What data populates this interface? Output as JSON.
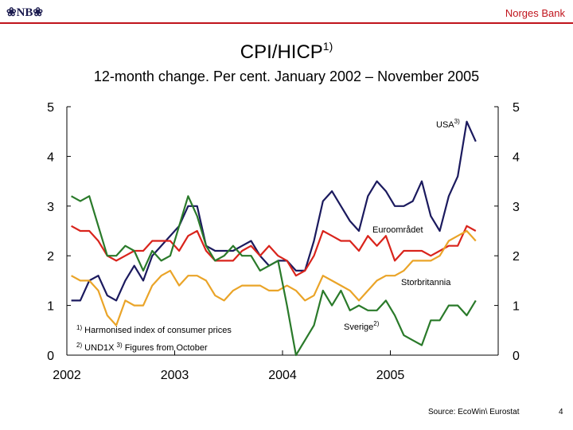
{
  "header": {
    "logo_text": "❀NB❀",
    "bank_name": "Norges Bank"
  },
  "footer": {
    "source": "Source: EcoWin\\ Eurostat",
    "page_number": "4"
  },
  "colors": {
    "header_accent": "#c0141c"
  },
  "chart_data": {
    "type": "line",
    "title": "CPI/HICP",
    "title_superscript": "1)",
    "subtitle": "12-month change. Per cent. January 2002 – November 2005",
    "ylim": [
      0,
      5
    ],
    "y_ticks": [
      "0",
      "1",
      "2",
      "3",
      "4",
      "5"
    ],
    "x_ticks": [
      "2002",
      "2003",
      "2004",
      "2005"
    ],
    "x_tick_values": [
      2002,
      2003,
      2004,
      2005
    ],
    "grid": false,
    "dual_y_axis": true,
    "notes": [
      {
        "sup": "1)",
        "text": "Harmonised index of consumer prices"
      },
      {
        "sup": "2)",
        "text": "UND1X",
        "sup2": "3)",
        "text2": "Figures from October"
      }
    ],
    "series": [
      {
        "name": "USA",
        "name_sup": "3)",
        "color": "#1b1a5e",
        "start": "2002-01",
        "monthly": true,
        "values": [
          1.1,
          1.1,
          1.5,
          1.6,
          1.2,
          1.1,
          1.5,
          1.8,
          1.5,
          2.0,
          2.2,
          2.4,
          2.6,
          3.0,
          3.0,
          2.2,
          2.1,
          2.1,
          2.1,
          2.2,
          2.3,
          2.0,
          1.8,
          1.9,
          1.9,
          1.7,
          1.7,
          2.3,
          3.1,
          3.3,
          3.0,
          2.7,
          2.5,
          3.2,
          3.5,
          3.3,
          3.0,
          3.0,
          3.1,
          3.5,
          2.8,
          2.5,
          3.2,
          3.6,
          4.7,
          4.3
        ]
      },
      {
        "name": "Euroområdet",
        "color": "#d9241c",
        "start": "2002-01",
        "monthly": true,
        "values": [
          2.6,
          2.5,
          2.5,
          2.3,
          2.0,
          1.9,
          2.0,
          2.1,
          2.1,
          2.3,
          2.3,
          2.3,
          2.1,
          2.4,
          2.5,
          2.1,
          1.9,
          1.9,
          1.9,
          2.1,
          2.2,
          2.0,
          2.2,
          2.0,
          1.9,
          1.6,
          1.7,
          2.0,
          2.5,
          2.4,
          2.3,
          2.3,
          2.1,
          2.4,
          2.2,
          2.4,
          1.9,
          2.1,
          2.1,
          2.1,
          2.0,
          2.1,
          2.2,
          2.2,
          2.6,
          2.5
        ]
      },
      {
        "name": "Storbritannia",
        "color": "#eaa428",
        "start": "2002-01",
        "monthly": true,
        "values": [
          1.6,
          1.5,
          1.5,
          1.3,
          0.8,
          0.6,
          1.1,
          1.0,
          1.0,
          1.4,
          1.6,
          1.7,
          1.4,
          1.6,
          1.6,
          1.5,
          1.2,
          1.1,
          1.3,
          1.4,
          1.4,
          1.4,
          1.3,
          1.3,
          1.4,
          1.3,
          1.1,
          1.2,
          1.6,
          1.5,
          1.4,
          1.3,
          1.1,
          1.3,
          1.5,
          1.6,
          1.6,
          1.7,
          1.9,
          1.9,
          1.9,
          2.0,
          2.3,
          2.4,
          2.5,
          2.3
        ]
      },
      {
        "name": "Sverige",
        "name_sup": "2)",
        "color": "#2a7a2a",
        "start": "2002-01",
        "monthly": true,
        "values": [
          3.2,
          3.1,
          3.2,
          2.6,
          2.0,
          2.0,
          2.2,
          2.1,
          1.7,
          2.1,
          1.9,
          2.0,
          2.6,
          3.2,
          2.8,
          2.2,
          1.9,
          2.0,
          2.2,
          2.0,
          2.0,
          1.7,
          1.8,
          1.9,
          1.0,
          0.0,
          0.3,
          0.6,
          1.3,
          1.0,
          1.3,
          0.9,
          1.0,
          0.9,
          0.9,
          1.1,
          0.8,
          0.4,
          0.3,
          0.2,
          0.7,
          0.7,
          1.0,
          1.0,
          0.8,
          1.1
        ]
      }
    ]
  }
}
